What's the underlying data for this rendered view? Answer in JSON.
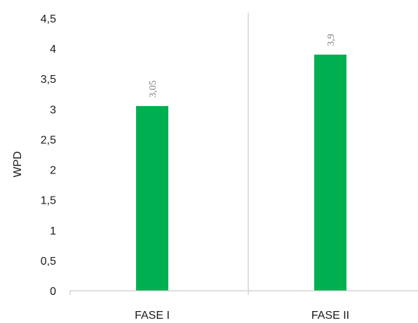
{
  "chart_data": {
    "type": "bar",
    "categories": [
      "FASE I",
      "FASE II"
    ],
    "values": [
      3.05,
      3.9
    ],
    "data_labels": [
      "3,05",
      "3,9"
    ],
    "ylabel": "WPD",
    "xlabel": "",
    "ylim": [
      0,
      4.5
    ],
    "yticks": [
      0,
      0.5,
      1,
      1.5,
      2,
      2.5,
      3,
      3.5,
      4,
      4.5
    ],
    "ytick_labels": [
      "0",
      "0,5",
      "1",
      "1,5",
      "2",
      "2,5",
      "3",
      "3,5",
      "4",
      "4,5"
    ],
    "grid": "vertical separator between categories",
    "legend": "none",
    "bar_color": "#00b050",
    "axis_color": "#bfbfbf"
  }
}
